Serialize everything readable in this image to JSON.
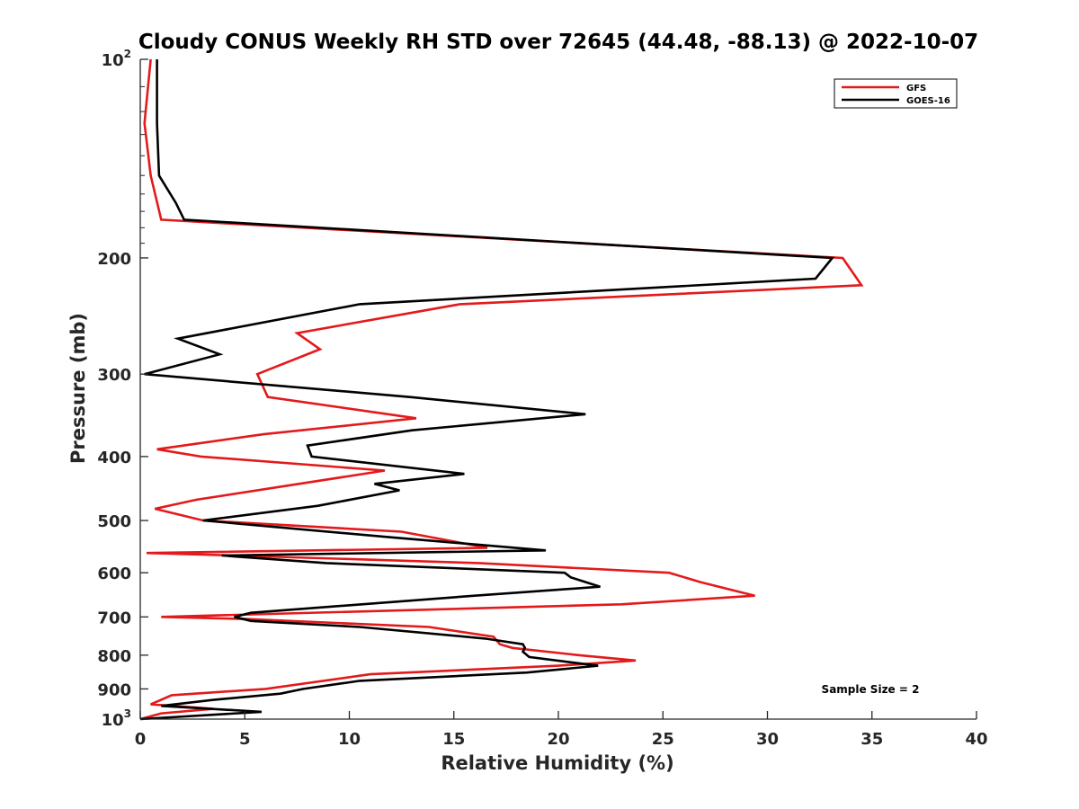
{
  "chart_data": {
    "type": "line",
    "title": "Cloudy CONUS Weekly RH STD over 72645 (44.48, -88.13) @ 2022-10-07",
    "xlabel": "Relative Humidity (%)",
    "ylabel": "Pressure (mb)",
    "xlim": [
      0,
      40
    ],
    "ylim": [
      100,
      1000
    ],
    "yscale": "log",
    "y_reversed": true,
    "grid": false,
    "legend_position": "top-right",
    "x_ticks": [
      "0",
      "5",
      "10",
      "15",
      "20",
      "25",
      "30",
      "35",
      "40"
    ],
    "y_ticks": [
      {
        "value": 100,
        "base": "10",
        "exp": "2"
      },
      {
        "value": 200,
        "label": "200"
      },
      {
        "value": 300,
        "label": "300"
      },
      {
        "value": 400,
        "label": "400"
      },
      {
        "value": 500,
        "label": "500"
      },
      {
        "value": 600,
        "label": "600"
      },
      {
        "value": 700,
        "label": "700"
      },
      {
        "value": 800,
        "label": "800"
      },
      {
        "value": 900,
        "label": "900"
      },
      {
        "value": 1000,
        "base": "10",
        "exp": "3"
      }
    ],
    "annotation": "Sample Size = 2",
    "series": [
      {
        "name": "GFS",
        "color": "#e31a1c",
        "points": [
          [
            0.5,
            100
          ],
          [
            0.2,
            125
          ],
          [
            0.5,
            150
          ],
          [
            1.0,
            175
          ],
          [
            33.6,
            200
          ],
          [
            34.5,
            220
          ],
          [
            15.3,
            235
          ],
          [
            7.5,
            260
          ],
          [
            8.6,
            275
          ],
          [
            5.6,
            300
          ],
          [
            6.1,
            325
          ],
          [
            13.2,
            350
          ],
          [
            5.9,
            370
          ],
          [
            0.8,
            390
          ],
          [
            2.9,
            400
          ],
          [
            11.7,
            420
          ],
          [
            2.7,
            465
          ],
          [
            0.7,
            480
          ],
          [
            3.0,
            500
          ],
          [
            12.5,
            520
          ],
          [
            16.6,
            550
          ],
          [
            0.3,
            560
          ],
          [
            4.5,
            565
          ],
          [
            16.2,
            580
          ],
          [
            25.3,
            600
          ],
          [
            26.8,
            620
          ],
          [
            29.4,
            650
          ],
          [
            23.0,
            670
          ],
          [
            1.0,
            700
          ],
          [
            5.0,
            705
          ],
          [
            13.8,
            725
          ],
          [
            16.9,
            750
          ],
          [
            17.2,
            770
          ],
          [
            17.8,
            780
          ],
          [
            21.0,
            800
          ],
          [
            23.7,
            815
          ],
          [
            20.0,
            830
          ],
          [
            11.0,
            855
          ],
          [
            6.0,
            900
          ],
          [
            1.5,
            920
          ],
          [
            0.5,
            950
          ],
          [
            3.5,
            965
          ],
          [
            1.0,
            980
          ],
          [
            0.0,
            1000
          ]
        ]
      },
      {
        "name": "GOES-16",
        "color": "#000000",
        "points": [
          [
            0.8,
            100
          ],
          [
            0.8,
            125
          ],
          [
            0.9,
            150
          ],
          [
            1.7,
            165
          ],
          [
            2.1,
            175
          ],
          [
            33.1,
            200
          ],
          [
            32.3,
            215
          ],
          [
            10.5,
            235
          ],
          [
            1.8,
            265
          ],
          [
            3.8,
            280
          ],
          [
            0.2,
            300
          ],
          [
            12.9,
            325
          ],
          [
            21.3,
            345
          ],
          [
            13.0,
            365
          ],
          [
            8.0,
            385
          ],
          [
            8.2,
            400
          ],
          [
            15.5,
            425
          ],
          [
            11.2,
            440
          ],
          [
            12.4,
            450
          ],
          [
            8.5,
            475
          ],
          [
            3.0,
            500
          ],
          [
            11.9,
            530
          ],
          [
            19.4,
            555
          ],
          [
            3.9,
            565
          ],
          [
            8.9,
            580
          ],
          [
            20.3,
            600
          ],
          [
            20.6,
            610
          ],
          [
            22.0,
            630
          ],
          [
            16.0,
            650
          ],
          [
            5.3,
            690
          ],
          [
            4.5,
            700
          ],
          [
            5.3,
            710
          ],
          [
            10.5,
            725
          ],
          [
            16.5,
            755
          ],
          [
            18.3,
            770
          ],
          [
            18.4,
            780
          ],
          [
            18.3,
            790
          ],
          [
            18.6,
            805
          ],
          [
            21.9,
            830
          ],
          [
            18.5,
            850
          ],
          [
            10.5,
            875
          ],
          [
            7.8,
            900
          ],
          [
            6.7,
            915
          ],
          [
            3.5,
            935
          ],
          [
            1.0,
            955
          ],
          [
            5.8,
            975
          ],
          [
            0.0,
            1000
          ]
        ]
      }
    ]
  }
}
